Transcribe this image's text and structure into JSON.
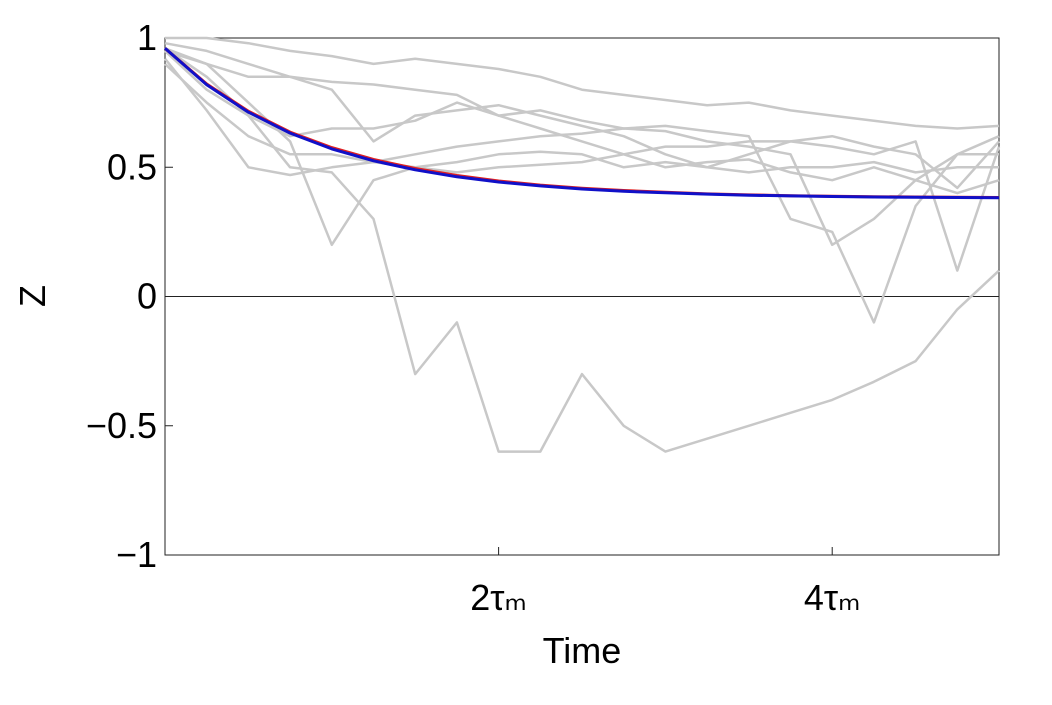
{
  "chart_data": {
    "type": "line",
    "x_label": "Time",
    "y_label": "Z",
    "x": [
      0,
      0.25,
      0.5,
      0.75,
      1,
      1.25,
      1.5,
      1.75,
      2,
      2.25,
      2.5,
      2.75,
      3,
      3.25,
      3.5,
      3.75,
      4,
      4.25,
      4.5,
      4.75,
      5
    ],
    "xlim": [
      0,
      5
    ],
    "xticks": [
      {
        "value": 2,
        "label": "2τₘ"
      },
      {
        "value": 4,
        "label": "4τₘ"
      }
    ],
    "ylim": [
      -1,
      1
    ],
    "yticks": [
      {
        "value": -1,
        "label": "−1"
      },
      {
        "value": -0.5,
        "label": "−0.5"
      },
      0,
      0.5,
      1
    ],
    "zero_line": true,
    "series": [
      {
        "color": "#c8c8c8",
        "values": [
          0.96,
          0.9,
          0.75,
          0.6,
          0.2,
          0.45,
          0.5,
          0.52,
          0.55,
          0.56,
          0.55,
          0.5,
          0.52,
          0.5,
          0.48,
          0.5,
          0.5,
          0.52,
          0.48,
          0.5,
          0.5
        ]
      },
      {
        "color": "#c8c8c8",
        "values": [
          0.96,
          0.85,
          0.7,
          0.5,
          0.48,
          0.3,
          -0.3,
          -0.1,
          -0.6,
          -0.6,
          -0.3,
          -0.5,
          -0.6,
          -0.55,
          -0.5,
          -0.45,
          -0.4,
          -0.33,
          -0.25,
          -0.05,
          0.1
        ]
      },
      {
        "color": "#c8c8c8",
        "values": [
          1,
          1,
          0.98,
          0.95,
          0.93,
          0.9,
          0.92,
          0.9,
          0.88,
          0.85,
          0.8,
          0.78,
          0.76,
          0.74,
          0.75,
          0.72,
          0.7,
          0.68,
          0.66,
          0.65,
          0.66
        ]
      },
      {
        "color": "#c8c8c8",
        "values": [
          0.95,
          0.9,
          0.85,
          0.85,
          0.83,
          0.82,
          0.8,
          0.78,
          0.7,
          0.72,
          0.68,
          0.65,
          0.66,
          0.64,
          0.62,
          0.3,
          0.25,
          -0.1,
          0.35,
          0.55,
          0.55
        ]
      },
      {
        "color": "#c8c8c8",
        "values": [
          0.9,
          0.75,
          0.62,
          0.55,
          0.55,
          0.52,
          0.5,
          0.48,
          0.5,
          0.51,
          0.52,
          0.55,
          0.58,
          0.58,
          0.6,
          0.6,
          0.58,
          0.55,
          0.6,
          0.1,
          0.58
        ]
      },
      {
        "color": "#c8c8c8",
        "values": [
          0.95,
          0.8,
          0.7,
          0.62,
          0.65,
          0.65,
          0.68,
          0.75,
          0.7,
          0.65,
          0.6,
          0.55,
          0.5,
          0.52,
          0.53,
          0.48,
          0.45,
          0.5,
          0.45,
          0.4,
          0.45
        ]
      },
      {
        "color": "#c8c8c8",
        "values": [
          0.98,
          0.95,
          0.9,
          0.85,
          0.8,
          0.6,
          0.7,
          0.72,
          0.74,
          0.7,
          0.66,
          0.62,
          0.55,
          0.5,
          0.55,
          0.6,
          0.62,
          0.58,
          0.55,
          0.42,
          0.6
        ]
      },
      {
        "color": "#c8c8c8",
        "values": [
          0.92,
          0.72,
          0.5,
          0.47,
          0.5,
          0.52,
          0.55,
          0.58,
          0.6,
          0.62,
          0.63,
          0.65,
          0.64,
          0.6,
          0.58,
          0.55,
          0.2,
          0.3,
          0.45,
          0.55,
          0.62
        ]
      },
      {
        "color": "#e02020",
        "values": [
          0.96,
          0.822,
          0.717,
          0.636,
          0.576,
          0.53,
          0.495,
          0.468,
          0.447,
          0.431,
          0.419,
          0.41,
          0.403,
          0.397,
          0.393,
          0.39,
          0.388,
          0.386,
          0.385,
          0.384,
          0.383
        ]
      },
      {
        "color": "#1010c8",
        "values": [
          0.96,
          0.819,
          0.713,
          0.632,
          0.571,
          0.525,
          0.49,
          0.463,
          0.443,
          0.428,
          0.416,
          0.407,
          0.401,
          0.396,
          0.392,
          0.389,
          0.387,
          0.385,
          0.384,
          0.383,
          0.382
        ]
      }
    ]
  }
}
